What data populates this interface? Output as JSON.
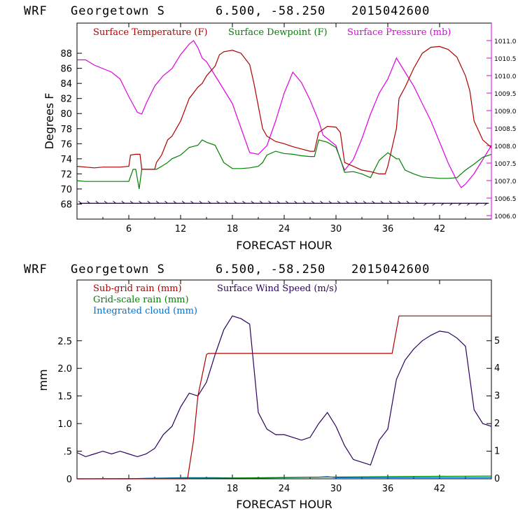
{
  "chart_data": [
    {
      "type": "line",
      "title": {
        "model": "WRF",
        "location": "Georgetown S",
        "coords": "6.500, -58.250",
        "init": "2015042600"
      },
      "xlabel": "FORECAST HOUR",
      "ylabel": "Degrees F",
      "xlim": [
        0,
        48
      ],
      "ylim": [
        66,
        92
      ],
      "y2lim": [
        1005.9,
        1011.5
      ],
      "xticks": [
        "6",
        "12",
        "18",
        "24",
        "30",
        "36",
        "42"
      ],
      "yticks": [
        "68",
        "70",
        "72",
        "74",
        "76",
        "78",
        "80",
        "82",
        "84",
        "86",
        "88"
      ],
      "y2ticks": [
        "1006.0",
        "1006.5",
        "1007.0",
        "1007.5",
        "1008.0",
        "1008.5",
        "1009.0",
        "1009.5",
        "1010.0",
        "1010.5",
        "1011.0"
      ],
      "series": [
        {
          "name": "Surface Temperature (F)",
          "axis": "left",
          "color": "#b00000",
          "x": [
            0,
            1,
            2,
            3,
            4,
            5,
            6,
            6.2,
            6.8,
            7.3,
            7.5,
            8,
            9,
            9.2,
            9.8,
            10.5,
            11,
            12,
            13,
            14,
            14.5,
            15,
            16,
            16.5,
            17,
            18,
            19,
            20,
            20.5,
            21,
            21.5,
            22,
            23,
            24,
            25,
            26,
            27,
            27.5,
            28,
            29,
            30,
            30.5,
            31,
            32,
            33,
            34,
            35,
            35.7,
            36,
            37,
            37.3,
            38,
            39,
            40,
            41,
            42,
            43,
            44,
            45,
            45.5,
            46,
            47,
            48
          ],
          "values": [
            73,
            72.9,
            72.8,
            72.9,
            72.9,
            72.9,
            73,
            74.5,
            74.6,
            74.6,
            72.6,
            72.6,
            72.6,
            73.5,
            74.5,
            76.5,
            77,
            79,
            82,
            83.5,
            84,
            85,
            86.3,
            87.8,
            88.2,
            88.4,
            88,
            86.5,
            84,
            81,
            78,
            77,
            76.3,
            76,
            75.6,
            75.3,
            75,
            75,
            77.5,
            78.3,
            78.2,
            77.5,
            73.5,
            73,
            72.5,
            72.3,
            72,
            72,
            73,
            78,
            82,
            83.5,
            86,
            88,
            88.8,
            88.9,
            88.5,
            87.5,
            85,
            83,
            79,
            76.5,
            75.5
          ]
        },
        {
          "name": "Surface Dewpoint (F)",
          "axis": "left",
          "color": "#008000",
          "x": [
            0,
            1,
            2,
            3,
            4,
            5,
            6,
            6.5,
            6.8,
            7.2,
            7.5,
            8,
            9,
            9.2,
            9.8,
            10.5,
            11,
            12,
            12.5,
            13,
            14,
            14.5,
            15,
            16,
            17,
            18,
            19,
            20,
            21,
            21.5,
            22,
            23,
            24,
            25,
            26,
            27,
            27.5,
            28,
            29,
            30,
            30.5,
            31,
            32,
            33,
            34,
            35,
            36,
            37,
            37.3,
            38,
            39,
            40,
            41,
            42,
            43,
            44,
            45,
            46,
            47,
            48
          ],
          "values": [
            71.1,
            71,
            71,
            71,
            71,
            71,
            71,
            72.6,
            72.6,
            70,
            72.6,
            72.6,
            72.6,
            72.6,
            73,
            73.5,
            74,
            74.5,
            75,
            75.5,
            75.8,
            76.5,
            76.2,
            75.8,
            73.5,
            72.7,
            72.7,
            72.8,
            73,
            73.5,
            74.5,
            75,
            74.7,
            74.6,
            74.4,
            74.3,
            74.3,
            76.5,
            76.2,
            75.5,
            74,
            72.2,
            72.3,
            72,
            71.5,
            73.8,
            74.8,
            74,
            74,
            72.5,
            72,
            71.6,
            71.5,
            71.4,
            71.4,
            71.5,
            72.5,
            73.3,
            74.2,
            74.6
          ]
        },
        {
          "name": "Surface Pressure (mb)",
          "axis": "right",
          "color": "#e000e0",
          "x": [
            0,
            1,
            2,
            3,
            4,
            5,
            6,
            7,
            7.5,
            8,
            9,
            10,
            11,
            12,
            13,
            13.5,
            14,
            14.5,
            15,
            16,
            17,
            18,
            19,
            20,
            21,
            22,
            23,
            24,
            25,
            26,
            27,
            28,
            28.5,
            29,
            30,
            30.5,
            31,
            32,
            33,
            34,
            35,
            36,
            36.5,
            37,
            38,
            39,
            40,
            41,
            42,
            43,
            44,
            44.5,
            45,
            46,
            47,
            48
          ],
          "values": [
            1010.45,
            1010.45,
            1010.3,
            1010.2,
            1010.1,
            1009.9,
            1009.4,
            1008.95,
            1008.9,
            1009.2,
            1009.7,
            1010.0,
            1010.2,
            1010.6,
            1010.9,
            1011.0,
            1010.8,
            1010.5,
            1010.4,
            1010.0,
            1009.6,
            1009.2,
            1008.5,
            1007.8,
            1007.75,
            1008.0,
            1008.7,
            1009.5,
            1010.1,
            1009.8,
            1009.3,
            1008.7,
            1008.3,
            1008.2,
            1008.0,
            1007.6,
            1007.3,
            1007.6,
            1008.2,
            1008.9,
            1009.5,
            1009.9,
            1010.2,
            1010.5,
            1010.1,
            1009.7,
            1009.2,
            1008.7,
            1008.1,
            1007.5,
            1007.0,
            1006.8,
            1006.9,
            1007.2,
            1007.6,
            1008.0
          ]
        },
        {
          "name": "Wind barbs (no legend)",
          "axis": "left",
          "color": "#1a0033",
          "y": 68.1
        }
      ]
    },
    {
      "type": "line",
      "title": {
        "model": "WRF",
        "location": "Georgetown S",
        "coords": "6.500, -58.250",
        "init": "2015042600"
      },
      "xlabel": "FORECAST HOUR",
      "ylabel": "mm",
      "xlim": [
        0,
        48
      ],
      "ylim": [
        0,
        3.6
      ],
      "y2lim": [
        0,
        7.2
      ],
      "xticks": [
        "6",
        "12",
        "18",
        "24",
        "30",
        "36",
        "42"
      ],
      "yticks": [
        "0",
        ".5",
        "1.0",
        "1.5",
        "2.0",
        "2.5"
      ],
      "y2ticks": [
        "0",
        "1",
        "2",
        "3",
        "4",
        "5"
      ],
      "series": [
        {
          "name": "Sub-grid rain (mm)",
          "axis": "left",
          "color": "#b00000",
          "x": [
            0,
            12.8,
            13.5,
            14,
            15,
            15.2,
            36.5,
            37.3,
            48
          ],
          "values": [
            0,
            0,
            0.7,
            1.5,
            2.25,
            2.27,
            2.27,
            2.95,
            2.95
          ]
        },
        {
          "name": "Grid-scale rain (mm)",
          "axis": "left",
          "color": "#008000",
          "x": [
            0,
            15,
            28,
            36,
            48
          ],
          "values": [
            0,
            0.01,
            0.03,
            0.04,
            0.05
          ]
        },
        {
          "name": "Integrated cloud (mm)",
          "axis": "left",
          "color": "#0070d0",
          "x": [
            0,
            6,
            8,
            12,
            16,
            20,
            24,
            28,
            29,
            30,
            32,
            36,
            40,
            44,
            48
          ],
          "values": [
            0,
            0,
            0.01,
            0.02,
            0.02,
            0.01,
            0.02,
            0.03,
            0.04,
            0.02,
            0.02,
            0.02,
            0.02,
            0.02,
            0.02
          ]
        },
        {
          "name": "Surface Wind Speed (m/s)",
          "axis": "right",
          "color": "#2a0060",
          "x": [
            0,
            1,
            2,
            3,
            4,
            5,
            6,
            7,
            8,
            9,
            10,
            11,
            12,
            13,
            14,
            15,
            16,
            17,
            18,
            19,
            20,
            21,
            22,
            23,
            24,
            25,
            26,
            27,
            28,
            29,
            30,
            31,
            32,
            33,
            34,
            35,
            36,
            37,
            38,
            39,
            40,
            41,
            42,
            43,
            44,
            45,
            46,
            47,
            48
          ],
          "values": [
            0.95,
            0.8,
            0.9,
            1.0,
            0.9,
            1.0,
            0.9,
            0.8,
            0.9,
            1.1,
            1.6,
            1.9,
            2.6,
            3.1,
            3.0,
            3.5,
            4.5,
            5.4,
            5.9,
            5.8,
            5.6,
            2.4,
            1.8,
            1.6,
            1.6,
            1.5,
            1.4,
            1.5,
            2.0,
            2.4,
            1.9,
            1.2,
            0.7,
            0.6,
            0.5,
            1.4,
            1.8,
            3.6,
            4.3,
            4.7,
            5.0,
            5.2,
            5.35,
            5.3,
            5.1,
            4.8,
            2.5,
            2.0,
            1.9
          ]
        }
      ]
    }
  ]
}
